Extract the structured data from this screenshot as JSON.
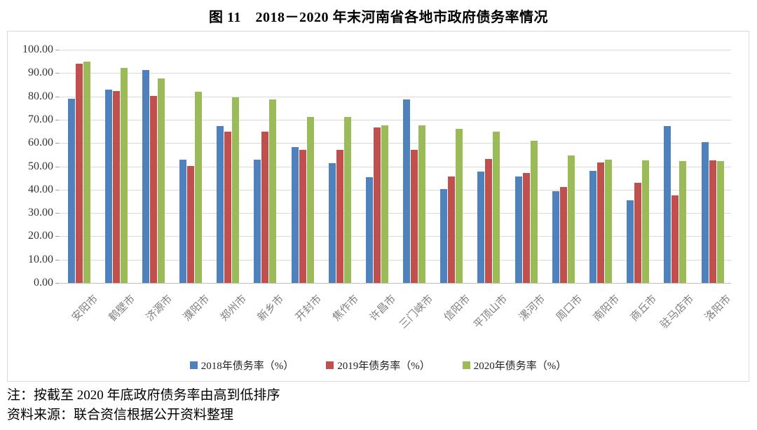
{
  "title": "图 11　2018－2020 年末河南省各地市政府债务率情况",
  "chart_data": {
    "type": "bar",
    "title": "图 11　2018－2020 年末河南省各地市政府债务率情况",
    "categories": [
      "安阳市",
      "鹤壁市",
      "济源市",
      "濮阳市",
      "郑州市",
      "新乡市",
      "开封市",
      "焦作市",
      "许昌市",
      "三门峡市",
      "信阳市",
      "平顶山市",
      "漯河市",
      "周口市",
      "南阳市",
      "商丘市",
      "驻马店市",
      "洛阳市"
    ],
    "series": [
      {
        "name": "2018年债务率（%）",
        "color": "#4f81bd",
        "values": [
          78.9,
          83.0,
          91.2,
          53.0,
          67.3,
          52.9,
          58.4,
          51.5,
          45.4,
          78.8,
          40.1,
          47.9,
          45.7,
          39.2,
          48.1,
          35.3,
          67.3,
          60.4
        ]
      },
      {
        "name": "2019年债务率（%）",
        "color": "#c0504d",
        "values": [
          93.9,
          82.4,
          80.2,
          50.3,
          64.8,
          65.0,
          57.2,
          57.0,
          66.6,
          57.2,
          45.8,
          53.2,
          47.3,
          41.2,
          51.8,
          43.0,
          37.5,
          52.5
        ]
      },
      {
        "name": "2020年债务率（%）",
        "color": "#9bbb59",
        "values": [
          94.9,
          92.2,
          87.8,
          81.9,
          79.7,
          78.7,
          71.3,
          71.1,
          67.5,
          67.5,
          66.0,
          65.0,
          61.0,
          54.8,
          52.9,
          52.7,
          52.3,
          52.2
        ]
      }
    ],
    "ylim": [
      0,
      100
    ],
    "ytick_step": 10,
    "ytick_labels": [
      "0.00",
      "10.00",
      "20.00",
      "30.00",
      "40.00",
      "50.00",
      "60.00",
      "70.00",
      "80.00",
      "90.00",
      "100.00"
    ],
    "xlabel": "",
    "ylabel": "",
    "grid": true,
    "legend_position": "bottom",
    "x_label_rotation_deg": -45
  },
  "notes": {
    "note1": "注：按截至 2020 年底政府债务率由高到低排序",
    "note2": "资料来源：联合资信根据公开资料整理"
  },
  "colors": {
    "series_2018": "#4f81bd",
    "series_2019": "#c0504d",
    "series_2020": "#9bbb59",
    "gridline": "#d9d9d9",
    "axis": "#bfbfbf",
    "x_label_text": "#7f7f7f",
    "y_label_text": "#333333"
  }
}
